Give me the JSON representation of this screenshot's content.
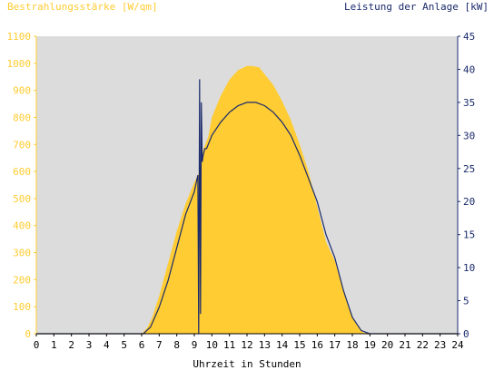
{
  "chart_data": {
    "type": "area",
    "title_left": "Bestrahlungsstärke [W/qm]",
    "title_right": "Leistung der Anlage [kW]",
    "xlabel": "Uhrzeit in Stunden",
    "x_ticks": [
      "0",
      "1",
      "2",
      "3",
      "4",
      "5",
      "6",
      "7",
      "8",
      "9",
      "10",
      "11",
      "12",
      "13",
      "14",
      "15",
      "16",
      "17",
      "18",
      "19",
      "20",
      "21",
      "22",
      "23",
      "24"
    ],
    "y_left_ticks": [
      "0",
      "100",
      "200",
      "300",
      "400",
      "500",
      "600",
      "700",
      "800",
      "900",
      "1000",
      "1100"
    ],
    "y_right_ticks": [
      "0",
      "5",
      "10",
      "15",
      "20",
      "25",
      "30",
      "35",
      "40",
      "45"
    ],
    "xlim": [
      0,
      24
    ],
    "ylim_left": [
      0,
      1100
    ],
    "ylim_right": [
      0,
      45
    ],
    "grid": false,
    "legend": "none",
    "colors": {
      "plot_background": "#dcdcdc",
      "irradiance_fill": "#ffcc33",
      "power_line": "#1a2a6c",
      "left_axis_text": "#ffcc33",
      "right_axis_text": "#1a2a6c",
      "x_axis_text": "#000000"
    },
    "series": [
      {
        "axis": "left",
        "style": "area",
        "x": [
          0,
          6.0,
          6.3,
          6.6,
          7.0,
          7.5,
          8.0,
          8.5,
          9.0,
          9.3,
          9.5,
          9.8,
          10.0,
          10.5,
          11.0,
          11.5,
          12.0,
          12.3,
          12.7,
          13.0,
          13.5,
          14.0,
          14.5,
          15.0,
          15.5,
          16.0,
          16.5,
          17.0,
          17.5,
          18.0,
          18.3,
          18.6,
          19.0,
          24
        ],
        "y": [
          0,
          0,
          20,
          60,
          140,
          260,
          380,
          480,
          560,
          600,
          680,
          730,
          800,
          880,
          940,
          975,
          990,
          990,
          985,
          960,
          920,
          860,
          790,
          700,
          600,
          470,
          340,
          270,
          160,
          60,
          30,
          5,
          0,
          0
        ]
      },
      {
        "axis": "right",
        "style": "line",
        "x": [
          0,
          6.1,
          6.5,
          7.0,
          7.5,
          8.0,
          8.5,
          9.0,
          9.2,
          9.25,
          9.3,
          9.35,
          9.4,
          9.45,
          9.5,
          9.6,
          9.7,
          10.0,
          10.5,
          11.0,
          11.5,
          12.0,
          12.5,
          13.0,
          13.5,
          14.0,
          14.5,
          15.0,
          15.5,
          16.0,
          16.5,
          17.0,
          17.5,
          18.0,
          18.5,
          19.0,
          24
        ],
        "y": [
          0,
          0,
          1,
          4,
          8,
          13,
          18,
          21.5,
          24,
          0,
          38.5,
          3,
          35,
          26,
          27,
          28,
          28,
          30,
          32,
          33.5,
          34.5,
          35,
          35,
          34.5,
          33.5,
          32,
          30,
          27,
          23.5,
          20,
          15,
          11.5,
          6.5,
          2.5,
          0.5,
          0,
          0
        ]
      }
    ]
  }
}
